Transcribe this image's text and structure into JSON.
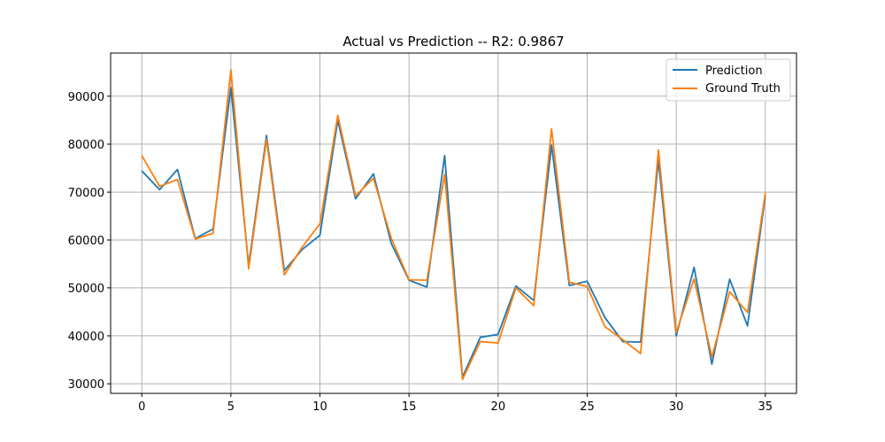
{
  "chart_data": {
    "type": "line",
    "title": "Actual vs Prediction -- R2: 0.9867",
    "xlabel": "",
    "ylabel": "",
    "xlim": [
      -1.75,
      36.75
    ],
    "ylim": [
      28000,
      99000
    ],
    "x_ticks": [
      0,
      5,
      10,
      15,
      20,
      25,
      30,
      35
    ],
    "x_tick_labels": [
      "0",
      "5",
      "10",
      "15",
      "20",
      "25",
      "30",
      "35"
    ],
    "y_ticks": [
      30000,
      40000,
      50000,
      60000,
      70000,
      80000,
      90000
    ],
    "y_tick_labels": [
      "30000",
      "40000",
      "50000",
      "60000",
      "70000",
      "80000",
      "90000"
    ],
    "grid": true,
    "legend_position": "top-right",
    "x": [
      0,
      1,
      2,
      3,
      4,
      5,
      6,
      7,
      8,
      9,
      10,
      11,
      12,
      13,
      14,
      15,
      16,
      17,
      18,
      19,
      20,
      21,
      22,
      23,
      24,
      25,
      26,
      27,
      28,
      29,
      30,
      31,
      32,
      33,
      34,
      35
    ],
    "series": [
      {
        "name": "Prediction",
        "color": "#1f77b4",
        "values": [
          74400,
          70500,
          74700,
          60300,
          62300,
          91800,
          54700,
          81800,
          53600,
          58000,
          61000,
          85000,
          68600,
          73800,
          59300,
          51600,
          50200,
          77600,
          31400,
          39700,
          40300,
          50400,
          47400,
          79800,
          50500,
          51400,
          43800,
          38800,
          38700,
          76700,
          40000,
          54300,
          34100,
          51800,
          42100,
          69300
        ]
      },
      {
        "name": "Ground Truth",
        "color": "#ff7f0e",
        "values": [
          77600,
          71200,
          72600,
          60200,
          61400,
          95500,
          54000,
          81000,
          52700,
          58500,
          63400,
          86000,
          69200,
          72900,
          60400,
          51700,
          51600,
          73700,
          30900,
          38800,
          38500,
          50000,
          46300,
          83200,
          51200,
          50300,
          41900,
          39200,
          36300,
          78800,
          40700,
          51900,
          35600,
          49200,
          44900,
          69800
        ]
      }
    ]
  }
}
